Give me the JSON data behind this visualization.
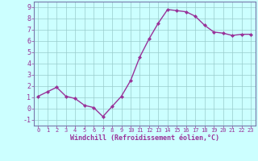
{
  "x": [
    0,
    1,
    2,
    3,
    4,
    5,
    6,
    7,
    8,
    9,
    10,
    11,
    12,
    13,
    14,
    15,
    16,
    17,
    18,
    19,
    20,
    21,
    22,
    23
  ],
  "y": [
    1.1,
    1.5,
    1.9,
    1.1,
    0.9,
    0.3,
    0.1,
    -0.7,
    0.2,
    1.1,
    2.5,
    4.6,
    6.2,
    7.6,
    8.8,
    8.7,
    8.6,
    8.2,
    7.4,
    6.8,
    6.7,
    6.5,
    6.6,
    6.6
  ],
  "line_color": "#993399",
  "marker": "D",
  "marker_size": 2.0,
  "line_width": 1.0,
  "bg_color": "#ccffff",
  "grid_color": "#99cccc",
  "xlabel": "Windchill (Refroidissement éolien,°C)",
  "xlabel_color": "#993399",
  "tick_color": "#993399",
  "xlim": [
    -0.5,
    23.5
  ],
  "ylim": [
    -1.5,
    9.5
  ],
  "yticks": [
    -1,
    0,
    1,
    2,
    3,
    4,
    5,
    6,
    7,
    8,
    9
  ],
  "xticks": [
    0,
    1,
    2,
    3,
    4,
    5,
    6,
    7,
    8,
    9,
    10,
    11,
    12,
    13,
    14,
    15,
    16,
    17,
    18,
    19,
    20,
    21,
    22,
    23
  ],
  "axis_color": "#993399",
  "spine_color": "#7777aa",
  "xlabel_fontsize": 6.0,
  "xtick_fontsize": 5.0,
  "ytick_fontsize": 6.0
}
